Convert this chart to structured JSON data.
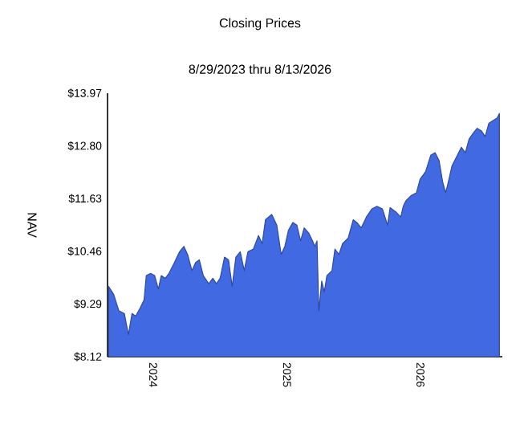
{
  "chart_data": {
    "type": "area",
    "title": "Closing Prices",
    "subtitle": "8/29/2023 thru 8/13/2026",
    "ylabel": "NAV",
    "xlim": [
      "2023-08-29",
      "2026-08-13"
    ],
    "xticks": [
      {
        "value": "2024-01-01",
        "label": "2024"
      },
      {
        "value": "2025-01-01",
        "label": "2025"
      },
      {
        "value": "2026-01-01",
        "label": "2026"
      }
    ],
    "ylim": [
      8.12,
      13.97
    ],
    "yticks": [
      {
        "value": 8.12,
        "label": "$8.12"
      },
      {
        "value": 9.29,
        "label": "$9.29"
      },
      {
        "value": 10.46,
        "label": "$10.46"
      },
      {
        "value": 11.63,
        "label": "$11.63"
      },
      {
        "value": 12.8,
        "label": "$12.80"
      },
      {
        "value": 13.97,
        "label": "$13.97"
      }
    ],
    "grid": false,
    "series": [
      {
        "color": "#4169e1",
        "x": [
          "2023-09-01",
          "2023-09-15",
          "2023-09-29",
          "2023-10-14",
          "2023-10-25",
          "2023-11-04",
          "2023-11-14",
          "2023-11-26",
          "2023-12-07",
          "2023-12-13",
          "2023-12-25",
          "2024-01-05",
          "2024-01-15",
          "2024-01-23",
          "2024-02-03",
          "2024-02-13",
          "2024-02-28",
          "2024-03-13",
          "2024-03-25",
          "2024-04-04",
          "2024-04-16",
          "2024-04-26",
          "2024-05-06",
          "2024-05-17",
          "2024-06-01",
          "2024-06-12",
          "2024-06-22",
          "2024-07-02",
          "2024-07-14",
          "2024-07-25",
          "2024-08-04",
          "2024-08-14",
          "2024-08-26",
          "2024-09-06",
          "2024-09-16",
          "2024-10-01",
          "2024-10-15",
          "2024-10-25",
          "2024-11-03",
          "2024-11-20",
          "2024-12-04",
          "2024-12-16",
          "2024-12-26",
          "2025-01-05",
          "2025-01-17",
          "2025-01-28",
          "2025-02-07",
          "2025-02-17",
          "2025-03-01",
          "2025-03-12",
          "2025-03-18",
          "2025-03-24",
          "2025-03-29",
          "2025-04-06",
          "2025-04-13",
          "2025-04-20",
          "2025-05-04",
          "2025-05-12",
          "2025-05-23",
          "2025-06-02",
          "2025-06-17",
          "2025-07-01",
          "2025-07-11",
          "2025-07-23",
          "2025-08-06",
          "2025-08-21",
          "2025-09-04",
          "2025-09-19",
          "2025-10-03",
          "2025-10-10",
          "2025-10-25",
          "2025-11-08",
          "2025-11-15",
          "2025-11-22",
          "2025-12-07",
          "2025-12-21",
          "2025-12-31",
          "2026-01-15",
          "2026-01-29",
          "2026-02-10",
          "2026-02-21",
          "2026-03-03",
          "2026-03-11",
          "2026-03-18",
          "2026-03-28",
          "2026-04-08",
          "2026-04-23",
          "2026-05-04",
          "2026-05-14",
          "2026-05-24",
          "2026-06-05",
          "2026-06-17",
          "2026-06-27",
          "2026-07-07",
          "2026-07-18",
          "2026-07-30",
          "2026-08-05"
        ],
        "values": [
          9.68,
          9.5,
          9.14,
          9.08,
          8.61,
          9.08,
          9.02,
          9.2,
          9.38,
          9.92,
          9.97,
          9.92,
          9.62,
          9.92,
          9.86,
          9.97,
          10.21,
          10.45,
          10.57,
          10.39,
          10.03,
          10.21,
          10.27,
          9.92,
          9.74,
          9.86,
          9.74,
          9.86,
          10.33,
          10.27,
          9.68,
          10.33,
          10.45,
          10.03,
          10.45,
          10.51,
          10.81,
          10.63,
          11.16,
          11.28,
          11.04,
          10.39,
          10.57,
          10.93,
          11.1,
          11.04,
          10.69,
          10.98,
          10.87,
          10.69,
          10.57,
          10.69,
          9.14,
          9.8,
          9.56,
          9.92,
          10.03,
          10.51,
          10.39,
          10.63,
          10.75,
          11.16,
          11.1,
          10.98,
          11.22,
          11.4,
          11.46,
          11.4,
          11.04,
          11.43,
          11.34,
          11.22,
          11.46,
          11.58,
          11.7,
          11.76,
          12.06,
          12.23,
          12.59,
          12.65,
          12.47,
          11.99,
          11.76,
          11.99,
          12.35,
          12.53,
          12.77,
          12.65,
          12.95,
          13.07,
          13.19,
          13.13,
          13.01,
          13.3,
          13.36,
          13.42,
          13.52
        ]
      }
    ]
  }
}
